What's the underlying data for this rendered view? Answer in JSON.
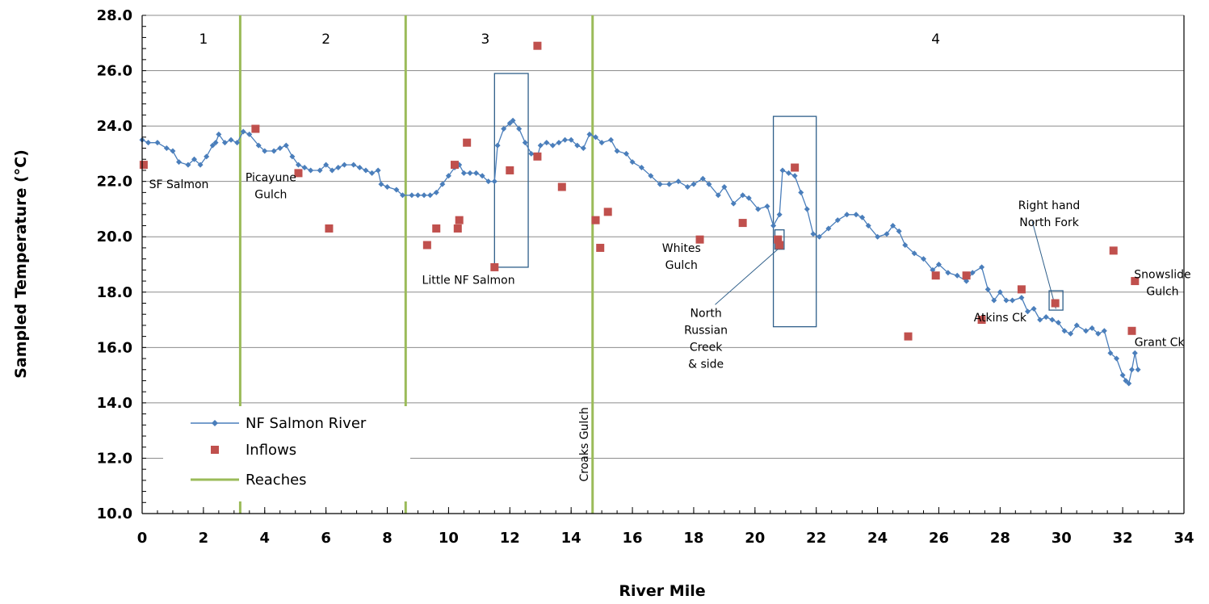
{
  "chart_data": {
    "type": "scatter",
    "xlabel": "River Mile",
    "ylabel": "Sampled Temperature (°C)",
    "xlim": [
      0,
      34
    ],
    "ylim": [
      10,
      28
    ],
    "x_ticks": [
      "0",
      "2",
      "4",
      "6",
      "8",
      "10",
      "12",
      "14",
      "16",
      "18",
      "20",
      "22",
      "24",
      "26",
      "28",
      "30",
      "32",
      "34"
    ],
    "y_ticks": [
      "10.0",
      "12.0",
      "14.0",
      "16.0",
      "18.0",
      "20.0",
      "22.0",
      "24.0",
      "26.0",
      "28.0"
    ],
    "legend": {
      "placement": "bottom-left",
      "entries": [
        "NF Salmon River",
        "Inflows",
        "Reaches"
      ]
    },
    "colors": {
      "river": "#4a7ebb",
      "inflows": "#c0504d",
      "reaches": "#9bbb59",
      "boxes": "#2f5f8a",
      "grid": "#8c8c8c"
    },
    "series": [
      {
        "name": "NF Salmon River",
        "style": "line-markers",
        "points": [
          [
            0.0,
            23.5
          ],
          [
            0.2,
            23.4
          ],
          [
            0.5,
            23.4
          ],
          [
            0.8,
            23.2
          ],
          [
            1.0,
            23.1
          ],
          [
            1.2,
            22.7
          ],
          [
            1.5,
            22.6
          ],
          [
            1.7,
            22.8
          ],
          [
            1.9,
            22.6
          ],
          [
            2.1,
            22.9
          ],
          [
            2.3,
            23.3
          ],
          [
            2.4,
            23.4
          ],
          [
            2.5,
            23.7
          ],
          [
            2.7,
            23.4
          ],
          [
            2.9,
            23.5
          ],
          [
            3.1,
            23.4
          ],
          [
            3.3,
            23.8
          ],
          [
            3.5,
            23.7
          ],
          [
            3.8,
            23.3
          ],
          [
            4.0,
            23.1
          ],
          [
            4.3,
            23.1
          ],
          [
            4.5,
            23.2
          ],
          [
            4.7,
            23.3
          ],
          [
            4.9,
            22.9
          ],
          [
            5.1,
            22.6
          ],
          [
            5.3,
            22.5
          ],
          [
            5.5,
            22.4
          ],
          [
            5.8,
            22.4
          ],
          [
            6.0,
            22.6
          ],
          [
            6.2,
            22.4
          ],
          [
            6.4,
            22.5
          ],
          [
            6.6,
            22.6
          ],
          [
            6.9,
            22.6
          ],
          [
            7.1,
            22.5
          ],
          [
            7.3,
            22.4
          ],
          [
            7.5,
            22.3
          ],
          [
            7.7,
            22.4
          ],
          [
            7.8,
            21.9
          ],
          [
            8.0,
            21.8
          ],
          [
            8.3,
            21.7
          ],
          [
            8.5,
            21.5
          ],
          [
            8.8,
            21.5
          ],
          [
            9.0,
            21.5
          ],
          [
            9.2,
            21.5
          ],
          [
            9.4,
            21.5
          ],
          [
            9.6,
            21.6
          ],
          [
            9.8,
            21.9
          ],
          [
            10.0,
            22.2
          ],
          [
            10.2,
            22.5
          ],
          [
            10.35,
            22.6
          ],
          [
            10.5,
            22.3
          ],
          [
            10.7,
            22.3
          ],
          [
            10.9,
            22.3
          ],
          [
            11.1,
            22.2
          ],
          [
            11.3,
            22.0
          ],
          [
            11.5,
            22.0
          ],
          [
            11.6,
            23.3
          ],
          [
            11.8,
            23.9
          ],
          [
            12.0,
            24.1
          ],
          [
            12.1,
            24.2
          ],
          [
            12.3,
            23.9
          ],
          [
            12.5,
            23.4
          ],
          [
            12.7,
            23.0
          ],
          [
            12.9,
            22.9
          ],
          [
            13.0,
            23.3
          ],
          [
            13.2,
            23.4
          ],
          [
            13.4,
            23.3
          ],
          [
            13.6,
            23.4
          ],
          [
            13.8,
            23.5
          ],
          [
            14.0,
            23.5
          ],
          [
            14.2,
            23.3
          ],
          [
            14.4,
            23.2
          ],
          [
            14.6,
            23.7
          ],
          [
            14.8,
            23.6
          ],
          [
            15.0,
            23.4
          ],
          [
            15.3,
            23.5
          ],
          [
            15.5,
            23.1
          ],
          [
            15.8,
            23.0
          ],
          [
            16.0,
            22.7
          ],
          [
            16.3,
            22.5
          ],
          [
            16.6,
            22.2
          ],
          [
            16.9,
            21.9
          ],
          [
            17.2,
            21.9
          ],
          [
            17.5,
            22.0
          ],
          [
            17.8,
            21.8
          ],
          [
            18.0,
            21.9
          ],
          [
            18.3,
            22.1
          ],
          [
            18.5,
            21.9
          ],
          [
            18.8,
            21.5
          ],
          [
            19.0,
            21.8
          ],
          [
            19.3,
            21.2
          ],
          [
            19.6,
            21.5
          ],
          [
            19.8,
            21.4
          ],
          [
            20.1,
            21.0
          ],
          [
            20.4,
            21.1
          ],
          [
            20.6,
            20.4
          ],
          [
            20.8,
            20.8
          ],
          [
            20.9,
            22.4
          ],
          [
            21.1,
            22.3
          ],
          [
            21.3,
            22.2
          ],
          [
            21.5,
            21.6
          ],
          [
            21.7,
            21.0
          ],
          [
            21.9,
            20.1
          ],
          [
            22.1,
            20.0
          ],
          [
            22.4,
            20.3
          ],
          [
            22.7,
            20.6
          ],
          [
            23.0,
            20.8
          ],
          [
            23.3,
            20.8
          ],
          [
            23.5,
            20.7
          ],
          [
            23.7,
            20.4
          ],
          [
            24.0,
            20.0
          ],
          [
            24.3,
            20.1
          ],
          [
            24.5,
            20.4
          ],
          [
            24.7,
            20.2
          ],
          [
            24.9,
            19.7
          ],
          [
            25.2,
            19.4
          ],
          [
            25.5,
            19.2
          ],
          [
            25.8,
            18.8
          ],
          [
            26.0,
            19.0
          ],
          [
            26.3,
            18.7
          ],
          [
            26.6,
            18.6
          ],
          [
            26.9,
            18.4
          ],
          [
            27.1,
            18.7
          ],
          [
            27.4,
            18.9
          ],
          [
            27.6,
            18.1
          ],
          [
            27.8,
            17.7
          ],
          [
            28.0,
            18.0
          ],
          [
            28.2,
            17.7
          ],
          [
            28.4,
            17.7
          ],
          [
            28.7,
            17.8
          ],
          [
            28.9,
            17.3
          ],
          [
            29.1,
            17.4
          ],
          [
            29.3,
            17.0
          ],
          [
            29.5,
            17.1
          ],
          [
            29.7,
            17.0
          ],
          [
            29.9,
            16.9
          ],
          [
            30.1,
            16.6
          ],
          [
            30.3,
            16.5
          ],
          [
            30.5,
            16.8
          ],
          [
            30.8,
            16.6
          ],
          [
            31.0,
            16.7
          ],
          [
            31.2,
            16.5
          ],
          [
            31.4,
            16.6
          ],
          [
            31.6,
            15.8
          ],
          [
            31.8,
            15.6
          ],
          [
            32.0,
            15.0
          ],
          [
            32.1,
            14.8
          ],
          [
            32.2,
            14.7
          ],
          [
            32.3,
            15.2
          ],
          [
            32.4,
            15.8
          ],
          [
            32.5,
            15.2
          ]
        ]
      },
      {
        "name": "Inflows",
        "style": "markers",
        "points": [
          [
            0.05,
            22.6
          ],
          [
            3.7,
            23.9
          ],
          [
            5.1,
            22.3
          ],
          [
            6.1,
            20.3
          ],
          [
            9.3,
            19.7
          ],
          [
            9.6,
            20.3
          ],
          [
            10.2,
            22.6
          ],
          [
            10.3,
            20.3
          ],
          [
            10.35,
            20.6
          ],
          [
            10.6,
            23.4
          ],
          [
            11.5,
            18.9
          ],
          [
            12.0,
            22.4
          ],
          [
            12.9,
            26.9
          ],
          [
            12.9,
            22.9
          ],
          [
            13.7,
            21.8
          ],
          [
            14.8,
            20.6
          ],
          [
            14.95,
            19.6
          ],
          [
            15.2,
            20.9
          ],
          [
            18.2,
            19.9
          ],
          [
            19.6,
            20.5
          ],
          [
            20.75,
            19.9
          ],
          [
            20.8,
            19.7
          ],
          [
            21.3,
            22.5
          ],
          [
            25.0,
            16.4
          ],
          [
            25.9,
            18.6
          ],
          [
            26.9,
            18.6
          ],
          [
            27.4,
            17.0
          ],
          [
            28.7,
            18.1
          ],
          [
            29.8,
            17.6
          ],
          [
            31.7,
            19.5
          ],
          [
            32.3,
            16.6
          ],
          [
            32.4,
            18.4
          ]
        ]
      }
    ],
    "reaches": [
      {
        "x": 3.2,
        "label": "1"
      },
      {
        "x": 8.6,
        "label": "2"
      },
      {
        "x": 14.7,
        "label": "3"
      }
    ],
    "reach_numbers": [
      {
        "x": 2.0,
        "label": "1"
      },
      {
        "x": 6.0,
        "label": "2"
      },
      {
        "x": 11.2,
        "label": "3"
      },
      {
        "x": 25.9,
        "label": "4"
      }
    ],
    "highlight_boxes": [
      {
        "x0": 11.5,
        "x1": 12.6,
        "y0": 18.9,
        "y1": 25.9
      },
      {
        "x0": 20.6,
        "x1": 22.0,
        "y0": 16.75,
        "y1": 24.35
      },
      {
        "x0": 20.65,
        "x1": 20.95,
        "y0": 19.55,
        "y1": 20.25
      },
      {
        "x0": 29.6,
        "x1": 30.05,
        "y0": 17.35,
        "y1": 18.05
      }
    ],
    "annotations": [
      {
        "lines": [
          "SF Salmon"
        ],
        "x": 1.2,
        "y": 21.75
      },
      {
        "lines": [
          "Picayune",
          "Gulch"
        ],
        "x": 4.2,
        "y": 22.0
      },
      {
        "lines": [
          "Little NF Salmon"
        ],
        "x": 10.65,
        "y": 18.3
      },
      {
        "lines": [
          "Whites",
          "Gulch"
        ],
        "x": 17.6,
        "y": 19.45
      },
      {
        "lines": [
          "North",
          "Russian",
          "Creek",
          "& side"
        ],
        "x": 18.4,
        "y": 17.1
      },
      {
        "lines": [
          "Atkins Ck"
        ],
        "x": 28.0,
        "y": 16.95
      },
      {
        "lines": [
          "Right hand",
          "North Fork"
        ],
        "x": 29.6,
        "y": 21.0
      },
      {
        "lines": [
          "Snowslide",
          "Gulch"
        ],
        "x": 33.3,
        "y": 18.5
      },
      {
        "lines": [
          "Grant Ck"
        ],
        "x": 33.2,
        "y": 16.05
      }
    ],
    "callout_lines": [
      {
        "from": [
          18.7,
          17.55
        ],
        "to": [
          20.8,
          19.6
        ]
      },
      {
        "from": [
          29.05,
          20.55
        ],
        "to": [
          29.82,
          17.4
        ]
      }
    ],
    "vertical_label": {
      "text": "Croaks Gulch",
      "x": 14.55,
      "y": 12.5
    }
  }
}
